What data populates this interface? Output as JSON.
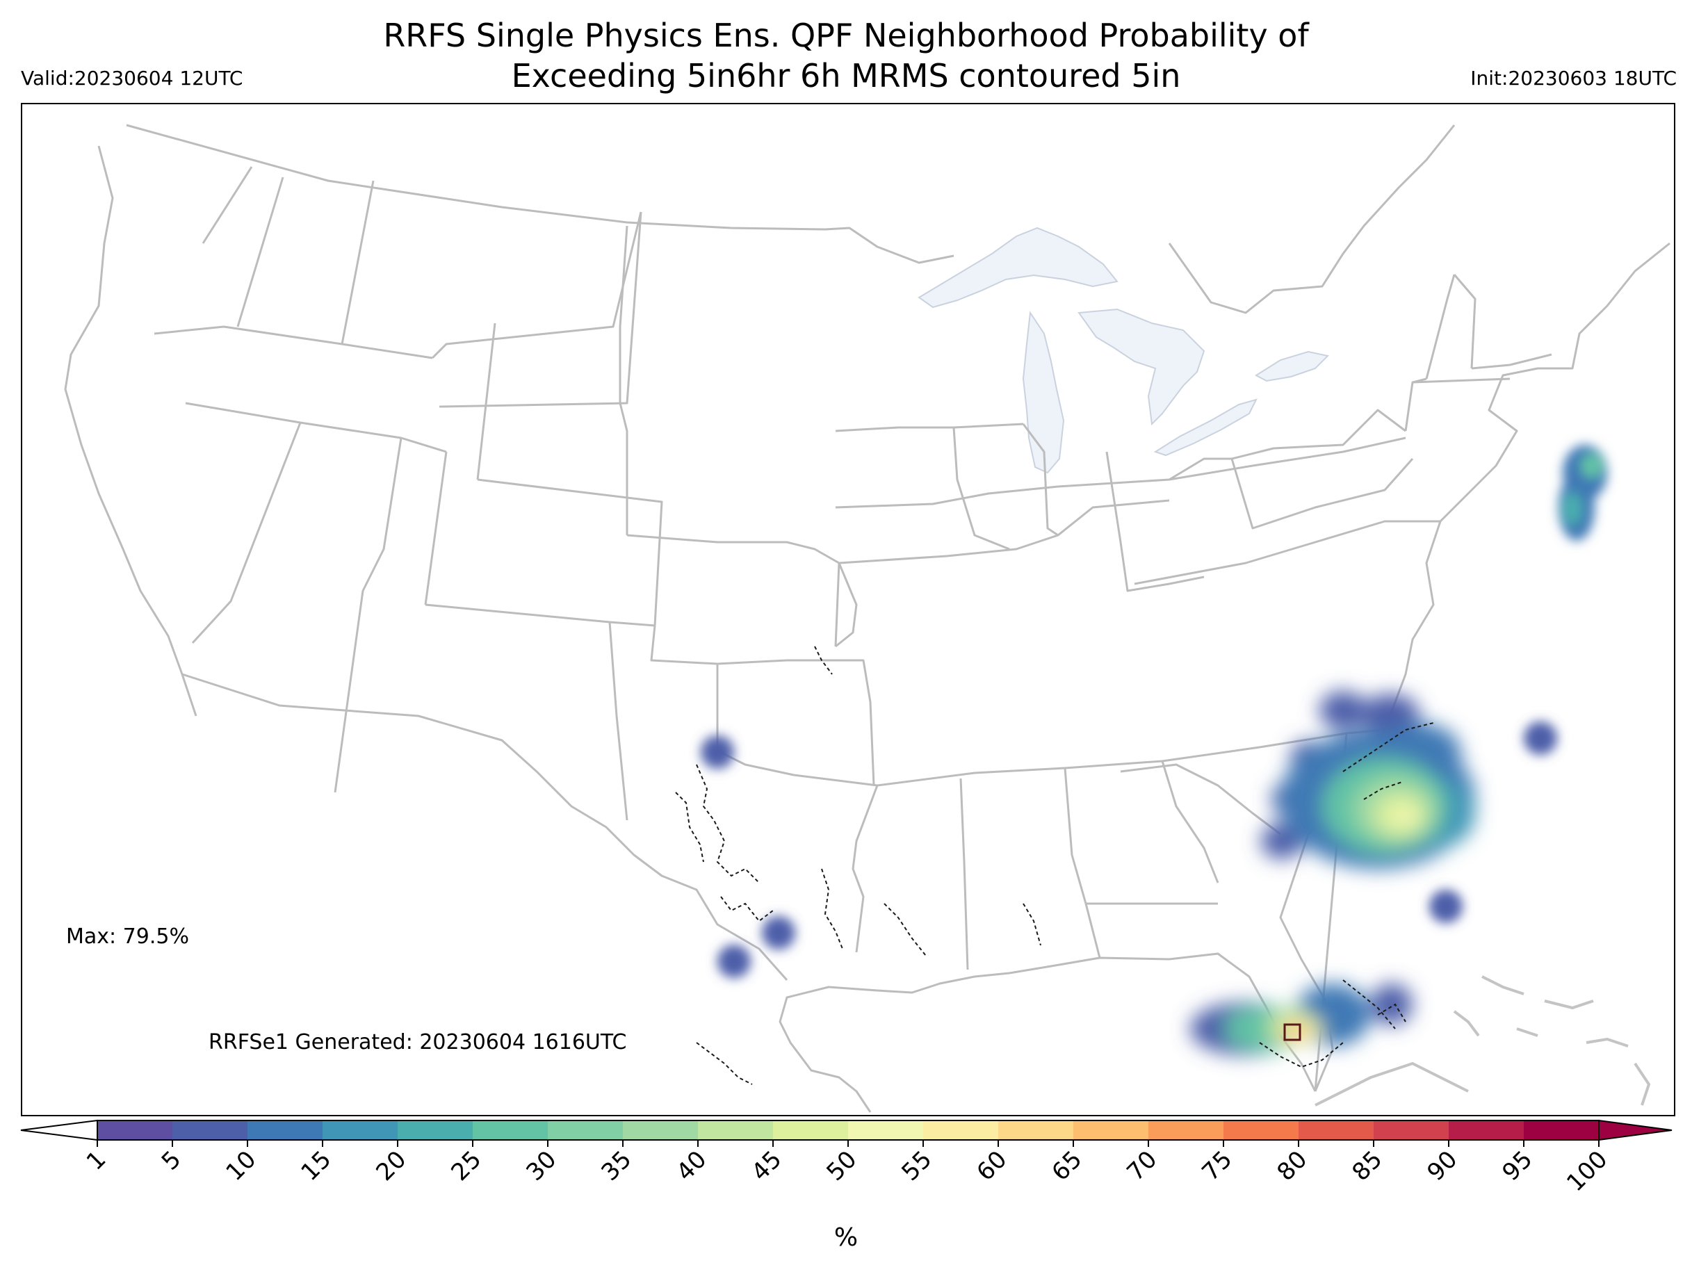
{
  "header": {
    "title_line1": "RRFS Single Physics Ens. QPF Neighborhood Probability of",
    "title_line2": "Exceeding 5in6hr 6h MRMS contoured 5in",
    "valid": "Valid:20230604 12UTC",
    "init": "Init:20230603 18UTC"
  },
  "annotations": {
    "max": "Max: 79.5%",
    "generated": "RRFSe1 Generated: 20230604 1616UTC"
  },
  "colorbar": {
    "unit": "%",
    "ticks": [
      "1",
      "5",
      "10",
      "15",
      "20",
      "25",
      "30",
      "35",
      "40",
      "45",
      "50",
      "55",
      "60",
      "65",
      "70",
      "75",
      "80",
      "85",
      "90",
      "95",
      "100"
    ],
    "colors": [
      "#5e4fa2",
      "#4e5fa9",
      "#3f79b5",
      "#3f96b7",
      "#4aaeaf",
      "#62c3a5",
      "#80cfa5",
      "#a0d9a4",
      "#c0e6a0",
      "#dcf09e",
      "#f1f7b0",
      "#fbeda2",
      "#fdd888",
      "#fdbe70",
      "#fb9d5a",
      "#f57a4b",
      "#e45a4a",
      "#d2424e",
      "#b61e49",
      "#9e0142"
    ],
    "under_color": "#ffffff",
    "over_color": "#9e0142"
  },
  "map": {
    "lake_color": "#eef3fa",
    "boundary_color": "#bcbcbc",
    "contour_color": "#1a1a1a"
  }
}
